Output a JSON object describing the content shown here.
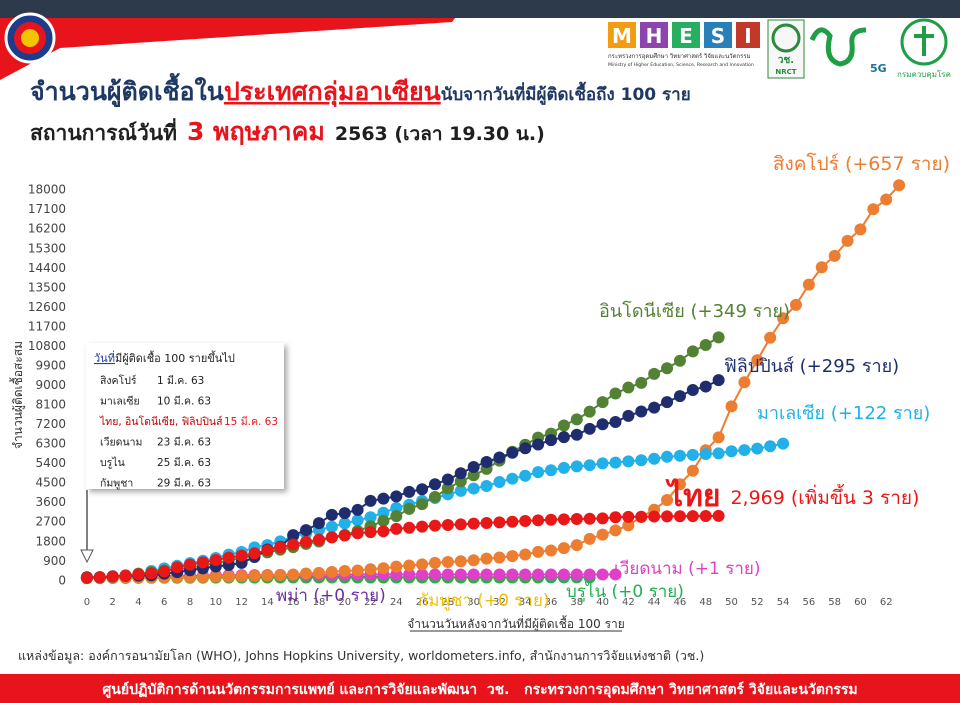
{
  "chart_data": {
    "type": "line",
    "title": [
      "จำนวนผู้ติดเชื้อใน",
      "ประเทศกลุ่มอาเซียน",
      "นับจากวันที่มีผู้ติดเชื้อถึง 100 ราย"
    ],
    "subtitle": [
      "สถานการณ์วันที่",
      "3 พฤษภาคม",
      "2563  (เวลา 19.30 น.)"
    ],
    "x_label": "จำนวนวันหลังจากวันที่มีผู้ติดเชื้อ 100 ราย",
    "y_label": "จำนวนผู้ติดเชื้อสะสม",
    "x": [
      0,
      1,
      2,
      3,
      4,
      5,
      6,
      7,
      8,
      9,
      10,
      11,
      12,
      13,
      14,
      15,
      16,
      17,
      18,
      19,
      20,
      21,
      22,
      23,
      24,
      25,
      26,
      27,
      28,
      29,
      30,
      31,
      32,
      33,
      34,
      35,
      36,
      37,
      38,
      39,
      40,
      41,
      42,
      43,
      44,
      45,
      46,
      47,
      48,
      49,
      50,
      51,
      52,
      53,
      54,
      55,
      56,
      57,
      58,
      59,
      60,
      61,
      62,
      63
    ],
    "xlim": [
      -1,
      64
    ],
    "xticks": [
      0,
      2,
      4,
      6,
      8,
      10,
      12,
      14,
      16,
      18,
      20,
      22,
      24,
      26,
      28,
      30,
      32,
      34,
      36,
      38,
      40,
      42,
      44,
      46,
      48,
      50,
      52,
      54,
      56,
      58,
      60,
      62
    ],
    "ylim": [
      -400,
      18400
    ],
    "yticks": [
      0,
      900,
      1800,
      2700,
      3600,
      4500,
      5400,
      6300,
      7200,
      8100,
      9000,
      9900,
      10800,
      11700,
      12600,
      13500,
      14400,
      15300,
      16200,
      17100,
      18000
    ],
    "grid": false,
    "series": [
      {
        "name": "พม่า (+0 ราย)",
        "color": "#7030a0",
        "values": [
          102,
          111,
          121,
          139,
          139,
          144,
          144,
          144,
          144,
          144,
          144,
          146,
          146,
          146,
          146,
          146,
          147,
          149,
          150,
          151,
          151,
          151,
          155,
          155,
          null,
          null,
          null,
          null,
          null,
          null,
          null,
          null,
          null,
          null,
          null,
          null,
          null,
          null,
          null,
          null,
          null,
          null,
          null,
          null,
          null,
          null,
          null,
          null,
          null,
          null,
          null,
          null,
          null,
          null,
          null,
          null,
          null,
          null,
          null,
          null,
          null,
          null,
          null,
          null
        ]
      },
      {
        "name": "กัมพูชา (+0 ราย)",
        "color": "#f0c000",
        "values": [
          103,
          107,
          109,
          110,
          112,
          114,
          114,
          114,
          115,
          115,
          117,
          119,
          119,
          120,
          122,
          122,
          122,
          122,
          122,
          122,
          122,
          122,
          122,
          122,
          122,
          122,
          122,
          122,
          122,
          122,
          122,
          122,
          122,
          122,
          122,
          122,
          null,
          null,
          null,
          null,
          null,
          null,
          null,
          null,
          null,
          null,
          null,
          null,
          null,
          null,
          null,
          null,
          null,
          null,
          null,
          null,
          null,
          null,
          null,
          null,
          null,
          null,
          null,
          null
        ]
      },
      {
        "name": "บรูไน (+0 ราย)",
        "color": "#22b050",
        "values": [
          104,
          105,
          114,
          115,
          120,
          126,
          127,
          129,
          131,
          133,
          134,
          135,
          135,
          135,
          135,
          135,
          136,
          136,
          136,
          136,
          136,
          136,
          136,
          137,
          138,
          138,
          138,
          138,
          138,
          138,
          138,
          138,
          138,
          138,
          138,
          138,
          138,
          138,
          138,
          138,
          null,
          null,
          null,
          null,
          null,
          null,
          null,
          null,
          null,
          null,
          null,
          null,
          null,
          null,
          null,
          null,
          null,
          null,
          null,
          null,
          null,
          null,
          null,
          null
        ]
      },
      {
        "name": "เวียดนาม (+1 ราย)",
        "color": "#e040c8",
        "values": [
          113,
          134,
          141,
          148,
          163,
          174,
          188,
          203,
          212,
          218,
          233,
          237,
          240,
          241,
          245,
          249,
          251,
          255,
          257,
          258,
          262,
          265,
          266,
          267,
          268,
          268,
          268,
          268,
          268,
          268,
          268,
          268,
          270,
          270,
          270,
          270,
          270,
          270,
          270,
          270,
          270,
          271,
          null,
          null,
          null,
          null,
          null,
          null,
          null,
          null,
          null,
          null,
          null,
          null,
          null,
          null,
          null,
          null,
          null,
          null,
          null,
          null,
          null,
          null
        ]
      },
      {
        "name": "สิงคโปร์ (+657 ราย)",
        "color": "#ed7d31",
        "values": [
          106,
          108,
          110,
          112,
          117,
          130,
          138,
          150,
          150,
          160,
          178,
          178,
          200,
          212,
          226,
          243,
          266,
          313,
          345,
          385,
          432,
          455,
          509,
          558,
          631,
          683,
          732,
          802,
          844,
          879,
          926,
          1000,
          1049,
          1114,
          1189,
          1309,
          1375,
          1481,
          1623,
          1910,
          2108,
          2299,
          2532,
          2918,
          3252,
          3699,
          4427,
          5050,
          5992,
          6588,
          8014,
          9125,
          10141,
          11178,
          12075,
          12693,
          13624,
          14423,
          14951,
          15641,
          16169,
          17101,
          17548,
          18205
        ]
      },
      {
        "name": "มาเลเซีย (+122 ราย)",
        "color": "#22b0e8",
        "values": [
          129,
          149,
          158,
          197,
          238,
          428,
          553,
          673,
          790,
          900,
          1030,
          1183,
          1306,
          1518,
          1624,
          1796,
          2031,
          2161,
          2320,
          2470,
          2626,
          2766,
          2908,
          3116,
          3333,
          3483,
          3662,
          3793,
          3963,
          4119,
          4228,
          4346,
          4530,
          4683,
          4817,
          4987,
          5072,
          5182,
          5251,
          5305,
          5389,
          5425,
          5482,
          5532,
          5603,
          5691,
          5742,
          5780,
          5820,
          5851,
          5945,
          6002,
          6071,
          6176,
          6298,
          null,
          null,
          null,
          null,
          null,
          null,
          null,
          null,
          null
        ]
      },
      {
        "name": "อินโดนีเซีย (+349 ราย)",
        "color": "#548235",
        "values": [
          117,
          134,
          172,
          227,
          309,
          369,
          450,
          514,
          579,
          686,
          790,
          893,
          1046,
          1155,
          1285,
          1414,
          1528,
          1677,
          1790,
          1986,
          2092,
          2273,
          2491,
          2738,
          2956,
          3293,
          3512,
          3842,
          4241,
          4557,
          4839,
          5136,
          5516,
          5923,
          6248,
          6575,
          6760,
          7135,
          7418,
          7775,
          8211,
          8607,
          8882,
          9096,
          9511,
          9771,
          10118,
          10551,
          10843,
          11192,
          null,
          null,
          null,
          null,
          null,
          null,
          null,
          null,
          null,
          null,
          null,
          null,
          null,
          null
        ]
      },
      {
        "name": "ฟิลิปปินส์ (+295 ราย)",
        "color": "#1f2d6e",
        "values": [
          140,
          142,
          187,
          202,
          217,
          230,
          307,
          380,
          462,
          552,
          636,
          707,
          803,
          1075,
          1418,
          1546,
          2084,
          2311,
          2633,
          3018,
          3094,
          3246,
          3660,
          3764,
          3870,
          4076,
          4195,
          4428,
          4648,
          4932,
          5223,
          5453,
          5660,
          5878,
          6087,
          6259,
          6459,
          6599,
          6710,
          6981,
          7192,
          7294,
          7579,
          7777,
          7958,
          8212,
          8488,
          8772,
          8928,
          9223,
          null,
          null,
          null,
          null,
          null,
          null,
          null,
          null,
          null,
          null,
          null,
          null,
          null,
          null
        ]
      },
      {
        "name": "ไทย",
        "label": "2,969 (เพิ่มขึ้น 3 ราย)",
        "color": "#e81818",
        "values": [
          114,
          147,
          177,
          212,
          272,
          322,
          411,
          599,
          721,
          827,
          934,
          1045,
          1136,
          1245,
          1388,
          1524,
          1651,
          1771,
          1875,
          1978,
          2067,
          2169,
          2220,
          2258,
          2369,
          2423,
          2473,
          2518,
          2551,
          2579,
          2613,
          2643,
          2672,
          2700,
          2733,
          2765,
          2792,
          2811,
          2826,
          2839,
          2854,
          2907,
          2922,
          2931,
          2938,
          2947,
          2954,
          2960,
          2966,
          2969,
          null,
          null,
          null,
          null,
          null,
          null,
          null,
          null,
          null,
          null,
          null,
          null,
          null,
          null
        ]
      }
    ],
    "annotation": {
      "title": [
        "วันที่",
        "มีผู้ติดเชื้อ 100 รายขึ้นไป"
      ],
      "rows": [
        [
          "สิงคโปร์",
          "1 มี.ค. 63"
        ],
        [
          "มาเลเซีย",
          "10 มี.ค. 63"
        ],
        [
          "ไทย, อินโดนีเซีย, ฟิลิปปินส์",
          "15 มี.ค. 63"
        ],
        [
          "เวียดนาม",
          "23 มี.ค. 63"
        ],
        [
          "บรูไน",
          "25 มี.ค. 63"
        ],
        [
          "กัมพูชา",
          "29 มี.ค. 63"
        ]
      ]
    },
    "source": "แหล่งข้อมูล: องค์การอนามัยโลก (WHO), Johns Hopkins University, worldometers.info, สำนักงานการวิจัยแห่งชาติ (วช.)"
  },
  "header": {
    "mhesi": [
      "M",
      "H",
      "E",
      "S",
      "I"
    ],
    "ministry_th": "กระทรวงการอุดมศึกษา วิทยาศาสตร์ วิจัยและนวัตกรรม",
    "ministry_en": "Ministry of Higher Education, Science, Research and Innovation",
    "nrct_th": "วช.",
    "nrct_en": "NRCT",
    "five_g": "5G",
    "ddc": "กรมควบคุมโรค"
  },
  "footer": "ศูนย์ปฏิบัติการด้านนวัตกรรมการแพทย์ และการวิจัยและพัฒนา  วช.   กระทรวงการอุดมศึกษา วิทยาศาสตร์ วิจัยและนวัตกรรม"
}
